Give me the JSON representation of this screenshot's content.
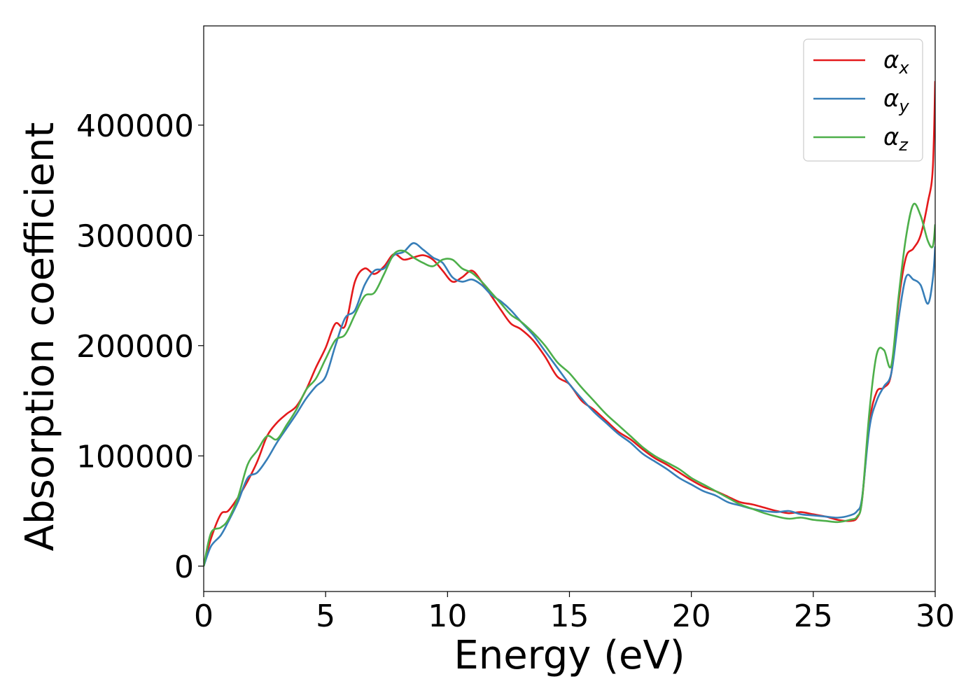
{
  "chart_data": {
    "type": "line",
    "title": "",
    "xlabel": "Energy (eV)",
    "ylabel": "Absorption coefficient",
    "xlim": [
      0,
      30
    ],
    "ylim": [
      -23000,
      490000
    ],
    "grid": false,
    "legend_position": "top-right",
    "x_ticks": [
      0,
      5,
      10,
      15,
      20,
      25,
      30
    ],
    "x_tick_labels": [
      "0",
      "5",
      "10",
      "15",
      "20",
      "25",
      "30"
    ],
    "y_ticks": [
      0,
      100000,
      200000,
      300000,
      400000
    ],
    "y_tick_labels": [
      "0",
      "100000",
      "200000",
      "300000",
      "400000"
    ],
    "series": [
      {
        "name": "αx",
        "name_base": "α",
        "name_sub": "x",
        "color": "#e41a1c",
        "x": [
          0,
          0.3,
          0.7,
          1.0,
          1.4,
          1.8,
          2.2,
          2.6,
          3.0,
          3.4,
          3.8,
          4.2,
          4.6,
          5.0,
          5.4,
          5.8,
          6.2,
          6.6,
          7.0,
          7.4,
          7.8,
          8.2,
          8.6,
          9.0,
          9.4,
          9.8,
          10.2,
          10.6,
          11.0,
          11.4,
          11.8,
          12.2,
          12.6,
          13.0,
          13.5,
          14.0,
          14.5,
          15.0,
          15.5,
          16.0,
          16.5,
          17.0,
          17.5,
          18.0,
          18.5,
          19.0,
          19.5,
          20.0,
          20.5,
          21.0,
          21.5,
          22.0,
          22.5,
          23.0,
          23.5,
          24.0,
          24.5,
          25.0,
          25.5,
          26.0,
          26.5,
          26.8,
          27.0,
          27.3,
          27.6,
          27.9,
          28.2,
          28.5,
          28.8,
          29.1,
          29.4,
          29.7,
          29.9,
          30.0
        ],
        "values": [
          0,
          25000,
          47000,
          50000,
          62000,
          77000,
          95000,
          118000,
          130000,
          138000,
          145000,
          160000,
          180000,
          198000,
          220000,
          218000,
          258000,
          270000,
          265000,
          272000,
          283000,
          278000,
          280000,
          282000,
          278000,
          268000,
          258000,
          262000,
          268000,
          258000,
          245000,
          232000,
          220000,
          215000,
          205000,
          190000,
          172000,
          165000,
          150000,
          142000,
          132000,
          122000,
          115000,
          106000,
          98000,
          92000,
          85000,
          78000,
          72000,
          68000,
          63000,
          58000,
          56000,
          53000,
          50000,
          48000,
          49000,
          47000,
          45000,
          42000,
          41000,
          44000,
          60000,
          130000,
          158000,
          162000,
          175000,
          240000,
          280000,
          288000,
          300000,
          330000,
          360000,
          440000
        ]
      },
      {
        "name": "αy",
        "name_base": "α",
        "name_sub": "y",
        "color": "#377eb8",
        "x": [
          0,
          0.3,
          0.7,
          1.0,
          1.4,
          1.8,
          2.2,
          2.6,
          3.0,
          3.4,
          3.8,
          4.2,
          4.6,
          5.0,
          5.4,
          5.8,
          6.2,
          6.6,
          7.0,
          7.4,
          7.8,
          8.2,
          8.6,
          9.0,
          9.4,
          9.8,
          10.2,
          10.6,
          11.0,
          11.4,
          11.8,
          12.2,
          12.6,
          13.0,
          13.5,
          14.0,
          14.5,
          15.0,
          15.5,
          16.0,
          16.5,
          17.0,
          17.5,
          18.0,
          18.5,
          19.0,
          19.5,
          20.0,
          20.5,
          21.0,
          21.5,
          22.0,
          22.5,
          23.0,
          23.5,
          24.0,
          24.5,
          25.0,
          25.5,
          26.0,
          26.5,
          26.8,
          27.0,
          27.3,
          27.6,
          27.9,
          28.2,
          28.5,
          28.8,
          29.1,
          29.4,
          29.7,
          29.9,
          30.0
        ],
        "values": [
          0,
          18000,
          28000,
          40000,
          58000,
          80000,
          85000,
          97000,
          112000,
          125000,
          138000,
          152000,
          163000,
          172000,
          200000,
          225000,
          232000,
          255000,
          268000,
          270000,
          282000,
          285000,
          293000,
          287000,
          280000,
          275000,
          262000,
          258000,
          260000,
          255000,
          246000,
          240000,
          232000,
          222000,
          210000,
          195000,
          180000,
          165000,
          152000,
          140000,
          130000,
          120000,
          112000,
          102000,
          95000,
          88000,
          80000,
          74000,
          68000,
          64000,
          58000,
          55000,
          52000,
          50000,
          49000,
          50000,
          47000,
          46000,
          45000,
          44000,
          46000,
          50000,
          62000,
          125000,
          150000,
          163000,
          175000,
          225000,
          262000,
          260000,
          255000,
          238000,
          260000,
          290000
        ]
      },
      {
        "name": "αz",
        "name_base": "α",
        "name_sub": "z",
        "color": "#4daf4a",
        "x": [
          0,
          0.3,
          0.7,
          1.0,
          1.4,
          1.8,
          2.2,
          2.6,
          3.0,
          3.4,
          3.8,
          4.2,
          4.6,
          5.0,
          5.4,
          5.8,
          6.2,
          6.6,
          7.0,
          7.4,
          7.8,
          8.2,
          8.6,
          9.0,
          9.4,
          9.8,
          10.2,
          10.6,
          11.0,
          11.4,
          11.8,
          12.2,
          12.6,
          13.0,
          13.5,
          14.0,
          14.5,
          15.0,
          15.5,
          16.0,
          16.5,
          17.0,
          17.5,
          18.0,
          18.5,
          19.0,
          19.5,
          20.0,
          20.5,
          21.0,
          21.5,
          22.0,
          22.5,
          23.0,
          23.5,
          24.0,
          24.5,
          25.0,
          25.5,
          26.0,
          26.5,
          26.8,
          27.0,
          27.3,
          27.6,
          27.9,
          28.2,
          28.5,
          28.8,
          29.1,
          29.4,
          29.7,
          29.9,
          30.0
        ],
        "values": [
          0,
          30000,
          35000,
          42000,
          62000,
          92000,
          105000,
          118000,
          115000,
          128000,
          142000,
          160000,
          170000,
          188000,
          205000,
          210000,
          228000,
          245000,
          248000,
          265000,
          283000,
          286000,
          280000,
          275000,
          272000,
          278000,
          278000,
          270000,
          266000,
          258000,
          248000,
          238000,
          228000,
          222000,
          212000,
          200000,
          185000,
          175000,
          162000,
          150000,
          138000,
          128000,
          118000,
          108000,
          100000,
          94000,
          88000,
          80000,
          74000,
          68000,
          62000,
          56000,
          52000,
          48000,
          45000,
          43000,
          44000,
          42000,
          41000,
          40000,
          42000,
          45000,
          60000,
          140000,
          192000,
          196000,
          182000,
          245000,
          298000,
          328000,
          318000,
          295000,
          290000,
          310000
        ]
      }
    ]
  }
}
